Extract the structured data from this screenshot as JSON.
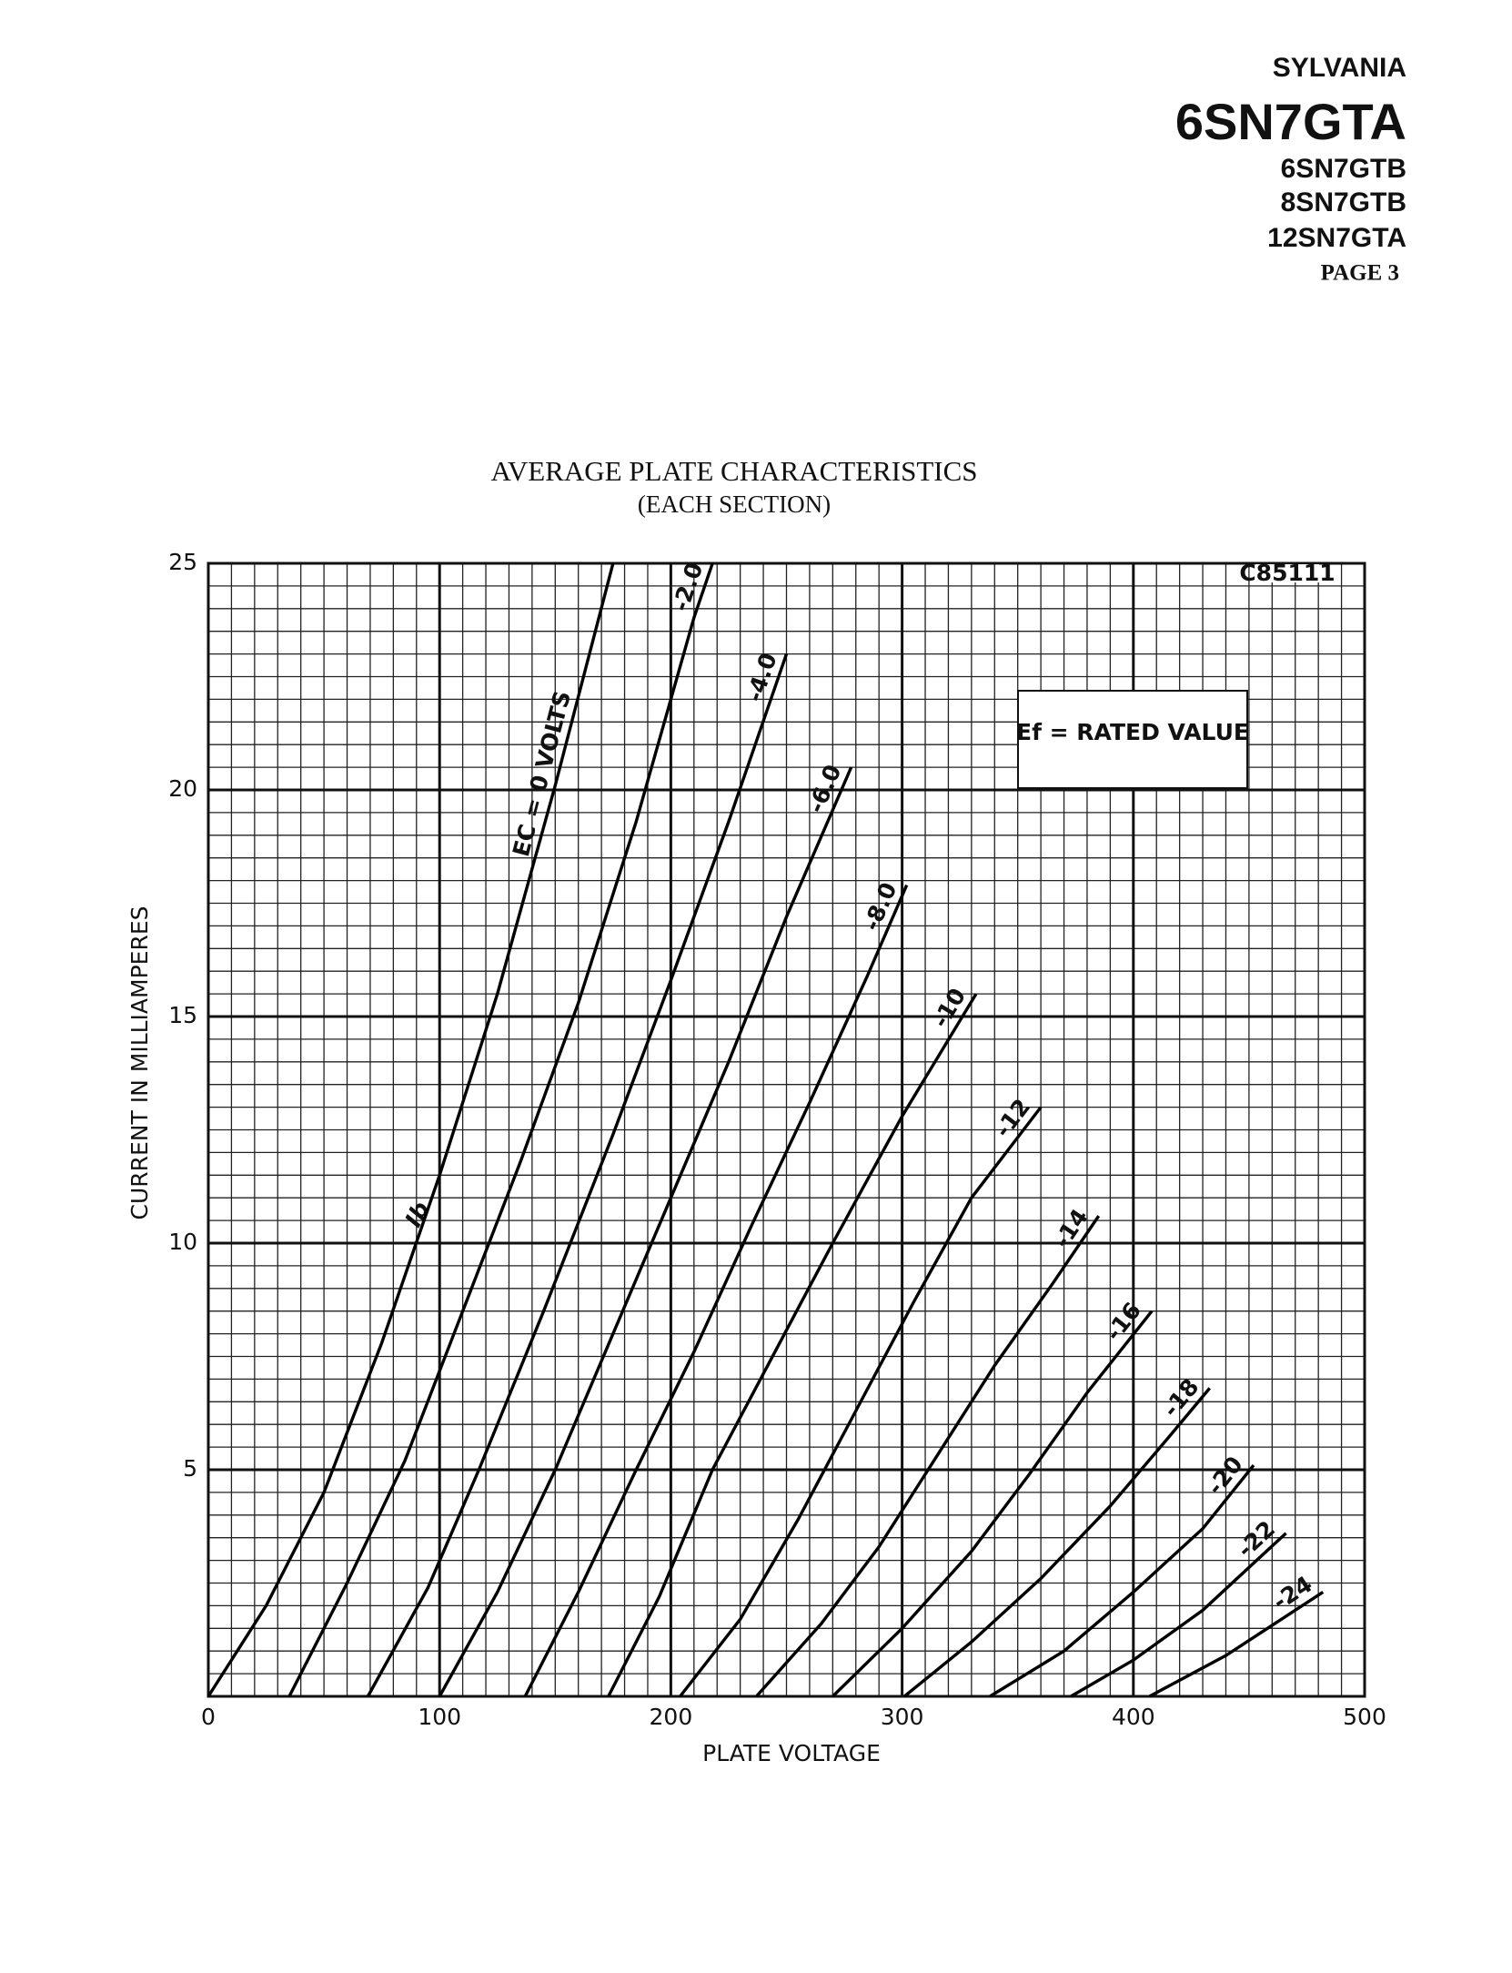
{
  "header": {
    "brand": "SYLVANIA",
    "models": [
      "6SN7GTA",
      "6SN7GTB",
      "8SN7GTB",
      "12SN7GTA"
    ],
    "page": "PAGE 3"
  },
  "chart_data": {
    "type": "line",
    "title": "AVERAGE PLATE CHARACTERISTICS",
    "subtitle": "(EACH SECTION)",
    "x_label": "PLATE VOLTAGE",
    "y_label": "CURRENT IN MILLIAMPERES",
    "annotations": [
      "Ef = RATED VALUE",
      "C85111",
      "Ib"
    ],
    "xlim": [
      0,
      500
    ],
    "ylim": [
      0,
      25
    ],
    "xticks": [
      0,
      100,
      200,
      300,
      400,
      500
    ],
    "yticks": [
      5,
      10,
      15,
      20,
      25
    ],
    "grid": true,
    "minor_grid_step": [
      10,
      0.5
    ],
    "series": [
      {
        "name": "EC = 0 VOLTS",
        "color": "#000000",
        "x": [
          0,
          25,
          50,
          75,
          100,
          125,
          150,
          175
        ],
        "values": [
          0,
          2,
          4.5,
          7.8,
          11.5,
          15.5,
          20.1,
          25
        ]
      },
      {
        "name": "-2.0",
        "color": "#000000",
        "x": [
          35,
          60,
          85,
          110,
          135,
          160,
          185,
          210,
          218
        ],
        "values": [
          0,
          2.5,
          5.2,
          8.5,
          11.8,
          15.3,
          19.3,
          23.8,
          25
        ]
      },
      {
        "name": "-4.0",
        "color": "#000000",
        "x": [
          69,
          95,
          117,
          145,
          175,
          200,
          225,
          250
        ],
        "values": [
          0,
          2.4,
          5,
          8.5,
          12.4,
          15.8,
          19.3,
          23
        ]
      },
      {
        "name": "-6.0",
        "color": "#000000",
        "x": [
          100,
          125,
          150,
          175,
          200,
          225,
          250,
          278
        ],
        "values": [
          0,
          2.3,
          5,
          8,
          11,
          14,
          17.2,
          20.5
        ]
      },
      {
        "name": "-8.0",
        "color": "#000000",
        "x": [
          137,
          160,
          185,
          210,
          235,
          260,
          285,
          302
        ],
        "values": [
          0,
          2.3,
          5,
          7.6,
          10.4,
          13.1,
          15.9,
          17.9
        ]
      },
      {
        "name": "-10",
        "color": "#000000",
        "x": [
          173,
          195,
          218,
          245,
          270,
          300,
          332
        ],
        "values": [
          0,
          2.2,
          5,
          7.6,
          10,
          12.8,
          15.5
        ]
      },
      {
        "name": "-12",
        "color": "#000000",
        "x": [
          204,
          230,
          255,
          280,
          305,
          330,
          360
        ],
        "values": [
          0,
          1.7,
          3.9,
          6.3,
          8.7,
          11,
          13
        ]
      },
      {
        "name": "-14",
        "color": "#000000",
        "x": [
          237,
          265,
          290,
          315,
          340,
          365,
          385
        ],
        "values": [
          0,
          1.6,
          3.3,
          5.3,
          7.3,
          9.1,
          10.6
        ]
      },
      {
        "name": "-16",
        "color": "#000000",
        "x": [
          270,
          300,
          330,
          355,
          380,
          408
        ],
        "values": [
          0,
          1.5,
          3.2,
          4.9,
          6.7,
          8.5
        ]
      },
      {
        "name": "-18",
        "color": "#000000",
        "x": [
          301,
          330,
          360,
          390,
          415,
          433
        ],
        "values": [
          0,
          1.2,
          2.6,
          4.2,
          5.7,
          6.8
        ]
      },
      {
        "name": "-20",
        "color": "#000000",
        "x": [
          338,
          370,
          400,
          430,
          452
        ],
        "values": [
          0,
          1,
          2.3,
          3.7,
          5.1
        ]
      },
      {
        "name": "-22",
        "color": "#000000",
        "x": [
          373,
          400,
          430,
          466
        ],
        "values": [
          0,
          0.8,
          1.9,
          3.6
        ]
      },
      {
        "name": "-24",
        "color": "#000000",
        "x": [
          407,
          440,
          482
        ],
        "values": [
          0,
          0.9,
          2.3
        ]
      }
    ]
  }
}
